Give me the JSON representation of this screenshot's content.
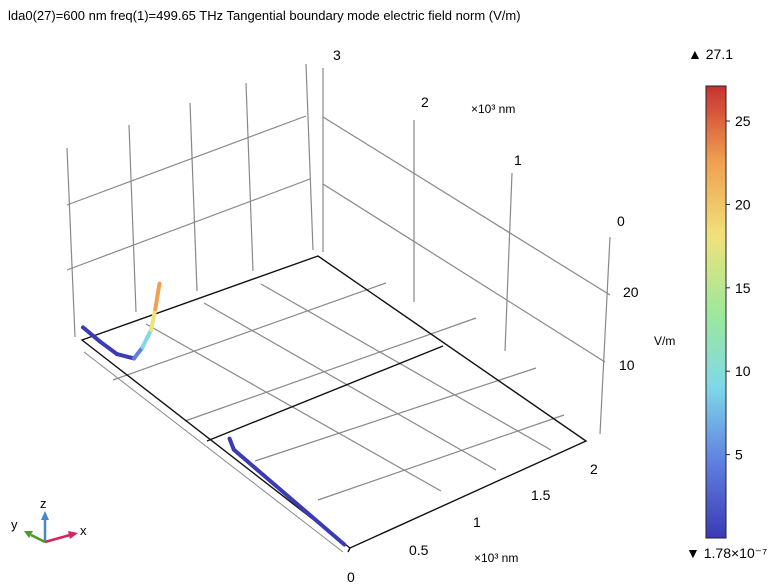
{
  "title": "lda0(27)=600 nm freq(1)=499.65 THz  Tangential boundary mode electric field norm (V/m)",
  "chart_data": {
    "type": "line",
    "plot_kind": "3d-line",
    "title": "lda0(27)=600 nm freq(1)=499.65 THz  Tangential boundary mode electric field norm (V/m)",
    "axes": {
      "x_ticks": [
        "0",
        "0.5",
        "1",
        "1.5",
        "2"
      ],
      "x_unit": "×10³ nm",
      "y_ticks": [
        "0",
        "1",
        "2",
        "3"
      ],
      "y_unit": "×10³ nm",
      "z_ticks": [
        "10",
        "20"
      ],
      "z_unit": "V/m"
    },
    "series": [
      {
        "values": [
          {
            "x": 0,
            "y": 3.0,
            "z": 0.4
          },
          {
            "x": 0,
            "y": 2.8,
            "z": 0.5
          },
          {
            "x": 0,
            "y": 2.6,
            "z": 1.0
          },
          {
            "x": 0,
            "y": 2.4,
            "z": 3.5
          },
          {
            "x": 0,
            "y": 2.3,
            "z": 8.0
          },
          {
            "x": 0,
            "y": 2.2,
            "z": 14.0
          },
          {
            "x": 0,
            "y": 2.15,
            "z": 20.0
          },
          {
            "x": 0,
            "y": 2.1,
            "z": 27.1
          }
        ]
      },
      {
        "values": [
          {
            "x": 0.05,
            "y": 1.35,
            "z": 2.0
          },
          {
            "x": 0.05,
            "y": 1.3,
            "z": 0.2
          },
          {
            "x": 0.05,
            "y": 0.0,
            "z": 0.2
          }
        ]
      }
    ],
    "colorbar": {
      "min": 1.78e-07,
      "max": 27.1,
      "ticks": [
        "5",
        "10",
        "15",
        "20",
        "25"
      ],
      "max_label": "▲ 27.1",
      "min_label": "▼ 1.78×10⁻⁷",
      "colormap": [
        "#3b3bb5",
        "#5f7fe0",
        "#7fd8e8",
        "#9ee89a",
        "#f0e27a",
        "#f0a050",
        "#c83030"
      ]
    },
    "triad": {
      "x": "x",
      "y": "y",
      "z": "z",
      "x_color": "#d4245a",
      "y_color": "#4c9a2a",
      "z_color": "#4a86c8"
    }
  }
}
